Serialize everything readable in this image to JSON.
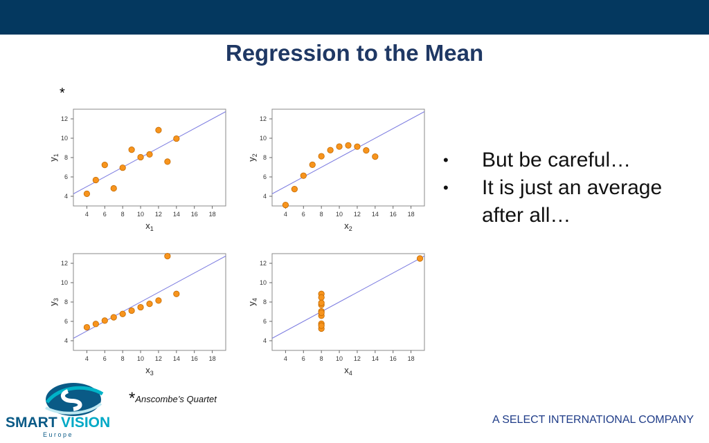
{
  "header": {
    "title": "Regression to the Mean"
  },
  "footnote_marker": "*",
  "bullets": [
    "But be careful…",
    "It is just an average after all…"
  ],
  "bullet_symbol": "•",
  "caption": {
    "marker": "*",
    "text": "Anscombe’s Quartet"
  },
  "logo": {
    "name": "SMARTVISION",
    "part1": "SMART",
    "part2": "VISION",
    "sub": "E u r o p e"
  },
  "company": "A SELECT INTERNATIONAL COMPANY",
  "colors": {
    "topbar": "#04385f",
    "title": "#1f3864",
    "point": "#f7941d",
    "point_stroke": "#c46a00",
    "line": "#7b7be0",
    "company": "#1f3c88"
  },
  "chart_data": [
    {
      "type": "scatter",
      "xlabel": "x",
      "xlabel_sub": "1",
      "ylabel": "y",
      "ylabel_sub": "1",
      "xlim": [
        2.5,
        19.5
      ],
      "ylim": [
        3,
        13
      ],
      "xticks": [
        4,
        6,
        8,
        10,
        12,
        14,
        16,
        18
      ],
      "yticks": [
        4,
        6,
        8,
        10,
        12
      ],
      "points": [
        [
          10,
          8.04
        ],
        [
          8,
          6.95
        ],
        [
          13,
          7.58
        ],
        [
          9,
          8.81
        ],
        [
          11,
          8.33
        ],
        [
          14,
          9.96
        ],
        [
          6,
          7.24
        ],
        [
          4,
          4.26
        ],
        [
          12,
          10.84
        ],
        [
          7,
          4.82
        ],
        [
          5,
          5.68
        ]
      ],
      "regression": {
        "intercept": 3.0,
        "slope": 0.5
      },
      "grid": false
    },
    {
      "type": "scatter",
      "xlabel": "x",
      "xlabel_sub": "2",
      "ylabel": "y",
      "ylabel_sub": "2",
      "xlim": [
        2.5,
        19.5
      ],
      "ylim": [
        3,
        13
      ],
      "xticks": [
        4,
        6,
        8,
        10,
        12,
        14,
        16,
        18
      ],
      "yticks": [
        4,
        6,
        8,
        10,
        12
      ],
      "points": [
        [
          10,
          9.14
        ],
        [
          8,
          8.14
        ],
        [
          13,
          8.74
        ],
        [
          9,
          8.77
        ],
        [
          11,
          9.26
        ],
        [
          14,
          8.1
        ],
        [
          6,
          6.13
        ],
        [
          4,
          3.1
        ],
        [
          12,
          9.13
        ],
        [
          7,
          7.26
        ],
        [
          5,
          4.74
        ]
      ],
      "regression": {
        "intercept": 3.0,
        "slope": 0.5
      },
      "grid": false
    },
    {
      "type": "scatter",
      "xlabel": "x",
      "xlabel_sub": "3",
      "ylabel": "y",
      "ylabel_sub": "3",
      "xlim": [
        2.5,
        19.5
      ],
      "ylim": [
        3,
        13
      ],
      "xticks": [
        4,
        6,
        8,
        10,
        12,
        14,
        16,
        18
      ],
      "yticks": [
        4,
        6,
        8,
        10,
        12
      ],
      "points": [
        [
          10,
          7.46
        ],
        [
          8,
          6.77
        ],
        [
          13,
          12.74
        ],
        [
          9,
          7.11
        ],
        [
          11,
          7.81
        ],
        [
          14,
          8.84
        ],
        [
          6,
          6.08
        ],
        [
          4,
          5.39
        ],
        [
          12,
          8.15
        ],
        [
          7,
          6.42
        ],
        [
          5,
          5.73
        ]
      ],
      "regression": {
        "intercept": 3.0,
        "slope": 0.5
      },
      "grid": false
    },
    {
      "type": "scatter",
      "xlabel": "x",
      "xlabel_sub": "4",
      "ylabel": "y",
      "ylabel_sub": "4",
      "xlim": [
        2.5,
        19.5
      ],
      "ylim": [
        3,
        13
      ],
      "xticks": [
        4,
        6,
        8,
        10,
        12,
        14,
        16,
        18
      ],
      "yticks": [
        4,
        6,
        8,
        10,
        12
      ],
      "points": [
        [
          8,
          6.58
        ],
        [
          8,
          5.76
        ],
        [
          8,
          7.71
        ],
        [
          8,
          8.84
        ],
        [
          8,
          8.47
        ],
        [
          8,
          7.04
        ],
        [
          8,
          5.25
        ],
        [
          19,
          12.5
        ],
        [
          8,
          5.56
        ],
        [
          8,
          7.91
        ],
        [
          8,
          6.89
        ]
      ],
      "regression": {
        "intercept": 3.0,
        "slope": 0.5
      },
      "grid": false
    }
  ]
}
